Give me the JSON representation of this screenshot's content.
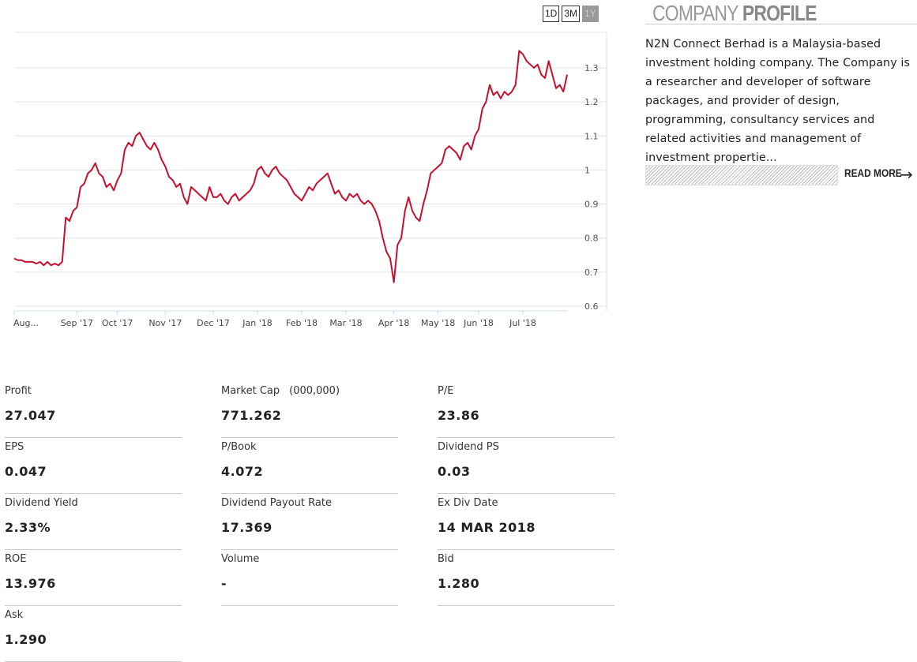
{
  "range_buttons": [
    {
      "label": "1D",
      "active": false
    },
    {
      "label": "3M",
      "active": false
    },
    {
      "label": "1Y",
      "active": true
    }
  ],
  "profile": {
    "title_light": "COMPANY",
    "title_bold": "PROFILE",
    "description": "N2N Connect Berhad is a Malaysia-based investment holding company. The Company is a researcher and developer of software packages, and provider of design, programming, consultancy services and related activities and management of investment propertie...",
    "read_more": "READ MORE"
  },
  "stats": [
    {
      "label": "Profit",
      "value": "27.047"
    },
    {
      "label": "Market Cap",
      "unit": "(000,000)",
      "value": "771.262"
    },
    {
      "label": "P/E",
      "value": "23.86"
    },
    {
      "label": "EPS",
      "value": "0.047"
    },
    {
      "label": "P/Book",
      "value": "4.072"
    },
    {
      "label": "Dividend PS",
      "value": "0.03"
    },
    {
      "label": "Dividend Yield",
      "value": "2.33%"
    },
    {
      "label": "Dividend Payout Rate",
      "value": "17.369"
    },
    {
      "label": "Ex Div Date",
      "value": "14 MAR 2018"
    },
    {
      "label": "ROE",
      "value": "13.976"
    },
    {
      "label": "Volume",
      "value": "-"
    },
    {
      "label": "Bid",
      "value": "1.280"
    },
    {
      "label": "Ask",
      "value": "1.290"
    }
  ],
  "chart_data": {
    "type": "line",
    "line_color": "#c8102e",
    "ylim": [
      0.6,
      1.35
    ],
    "yticks": [
      "1.3",
      "1.2",
      "1.1",
      "1",
      "0.9",
      "0.8",
      "0.7",
      "0.6"
    ],
    "ytick_values": [
      1.3,
      1.2,
      1.1,
      1.0,
      0.9,
      0.8,
      0.7,
      0.6
    ],
    "xticks": [
      "Aug...",
      "Sep '17",
      "Oct '17",
      "Nov '17",
      "Dec '17",
      "Jan '18",
      "Feb '18",
      "Mar '18",
      "Apr '18",
      "May '18",
      "Jun '18",
      "Jul '18"
    ],
    "xtick_index": [
      0,
      17,
      28,
      41,
      54,
      66,
      78,
      90,
      103,
      115,
      126,
      138
    ],
    "grid": true,
    "series": [
      {
        "values": [
          0.74,
          0.735,
          0.735,
          0.73,
          0.73,
          0.73,
          0.725,
          0.73,
          0.72,
          0.73,
          0.72,
          0.725,
          0.72,
          0.73,
          0.86,
          0.85,
          0.88,
          0.89,
          0.95,
          0.96,
          0.99,
          1.0,
          1.02,
          0.99,
          0.98,
          0.95,
          0.96,
          0.94,
          0.97,
          0.99,
          1.06,
          1.08,
          1.07,
          1.1,
          1.11,
          1.09,
          1.07,
          1.06,
          1.08,
          1.06,
          1.03,
          1.01,
          0.98,
          0.97,
          0.95,
          0.96,
          0.92,
          0.9,
          0.95,
          0.94,
          0.93,
          0.92,
          0.91,
          0.95,
          0.92,
          0.92,
          0.93,
          0.91,
          0.9,
          0.92,
          0.93,
          0.91,
          0.92,
          0.93,
          0.94,
          0.96,
          1.0,
          1.01,
          0.99,
          0.98,
          1.0,
          1.01,
          0.99,
          0.98,
          0.97,
          0.95,
          0.93,
          0.92,
          0.91,
          0.93,
          0.95,
          0.94,
          0.96,
          0.97,
          0.98,
          0.99,
          0.96,
          0.93,
          0.94,
          0.92,
          0.91,
          0.93,
          0.92,
          0.93,
          0.91,
          0.9,
          0.91,
          0.9,
          0.88,
          0.85,
          0.8,
          0.76,
          0.74,
          0.67,
          0.78,
          0.8,
          0.88,
          0.92,
          0.88,
          0.86,
          0.85,
          0.9,
          0.94,
          0.99,
          1.0,
          1.01,
          1.02,
          1.06,
          1.07,
          1.06,
          1.05,
          1.03,
          1.07,
          1.08,
          1.06,
          1.1,
          1.12,
          1.18,
          1.2,
          1.25,
          1.22,
          1.23,
          1.21,
          1.23,
          1.22,
          1.23,
          1.25,
          1.35,
          1.34,
          1.32,
          1.31,
          1.3,
          1.31,
          1.28,
          1.27,
          1.32,
          1.28,
          1.24,
          1.25,
          1.23,
          1.28
        ]
      }
    ]
  }
}
